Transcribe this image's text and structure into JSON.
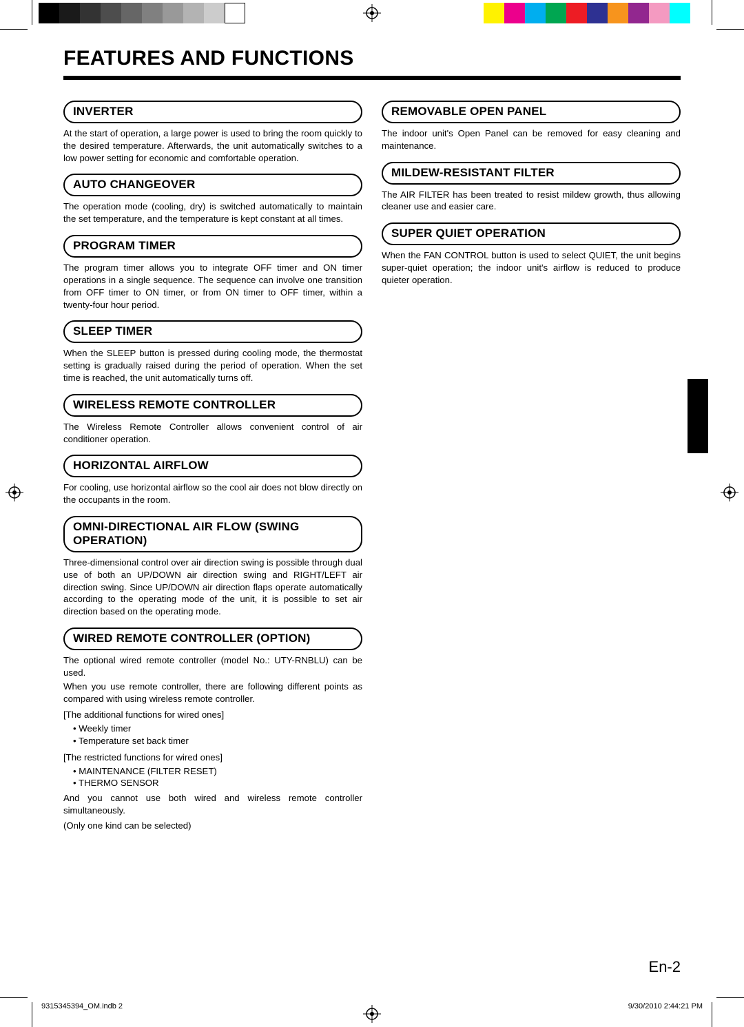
{
  "print_marks": {
    "grayscale_swatches": [
      "#000000",
      "#1a1a1a",
      "#333333",
      "#4d4d4d",
      "#666666",
      "#808080",
      "#999999",
      "#b3b3b3",
      "#cccccc",
      "#ffffff"
    ],
    "color_swatches": [
      "#fff200",
      "#ec008c",
      "#00aeef",
      "#00a651",
      "#ed1c24",
      "#2e3192",
      "#f7941d",
      "#92278f",
      "#f49ac1",
      "#00ffff"
    ]
  },
  "page": {
    "title": "FEATURES AND FUNCTIONS",
    "page_label": "En-2"
  },
  "footer": {
    "left": "9315345394_OM.indb   2",
    "right": "9/30/2010   2:44:21 PM"
  },
  "left_column": [
    {
      "heading": "INVERTER",
      "body": "At the start of operation, a large power is used to bring the room quickly to the desired temperature. Afterwards, the unit automatically switches to a low power setting for economic and comfortable operation."
    },
    {
      "heading": "AUTO CHANGEOVER",
      "body": "The operation mode (cooling, dry) is switched automatically to maintain the set temperature, and the temperature is kept constant at all times."
    },
    {
      "heading": "PROGRAM TIMER",
      "body": "The program timer allows you to integrate OFF timer and ON timer operations in a single sequence. The sequence can involve one transition from OFF timer to ON timer, or from ON timer to OFF timer, within a twenty-four hour period."
    },
    {
      "heading": "SLEEP TIMER",
      "body": "When the SLEEP button is pressed during cooling mode, the thermostat setting is gradually raised during the period of operation. When the set time is reached, the unit automatically turns off."
    },
    {
      "heading": "WIRELESS REMOTE CONTROLLER",
      "body": "The Wireless Remote Controller allows convenient control of air conditioner operation."
    },
    {
      "heading": "HORIZONTAL AIRFLOW",
      "body": "For cooling, use horizontal airflow so the cool air does not blow directly on the occupants in the room."
    },
    {
      "heading": "OMNI-DIRECTIONAL AIR FLOW (SWING OPERATION)",
      "body": "Three-dimensional control over air direction swing is possible through dual use of both an UP/DOWN air direction swing and RIGHT/LEFT air direction swing. Since UP/DOWN air direction flaps operate automatically according to the operating mode of the unit, it is possible to set air direction based on the operating mode."
    },
    {
      "heading": "WIRED REMOTE CONTROLLER (OPTION)",
      "body_lines": [
        "The optional wired remote controller (model No.: UTY-RNBLU) can be used.",
        "When you use remote controller, there are following different points as compared with using wireless remote controller."
      ],
      "additional_label": "[The additional functions for wired ones]",
      "additional_items": [
        "Weekly timer",
        "Temperature set back timer"
      ],
      "restricted_label": "[The restricted functions for wired ones]",
      "restricted_items": [
        "MAINTENANCE (FILTER RESET)",
        "THERMO SENSOR"
      ],
      "trailer": "And you cannot use both wired and wireless remote controller simultaneously.",
      "trailer2": "(Only one kind can be selected)"
    }
  ],
  "right_column": [
    {
      "heading": "REMOVABLE OPEN PANEL",
      "body": "The indoor unit's Open Panel can be removed for easy cleaning and maintenance."
    },
    {
      "heading": "MILDEW-RESISTANT FILTER",
      "body": "The AIR FILTER has been treated to resist mildew growth, thus allowing cleaner use and easier care."
    },
    {
      "heading": "SUPER QUIET OPERATION",
      "body": "When the FAN CONTROL button is used to select QUIET, the unit begins super-quiet operation; the indoor unit's airflow is reduced to produce quieter operation."
    }
  ]
}
